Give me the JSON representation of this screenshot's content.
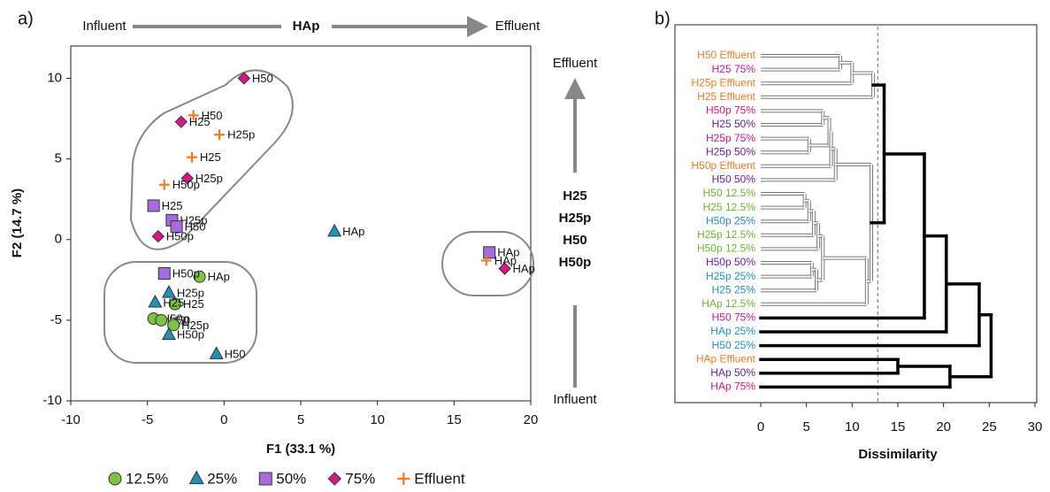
{
  "chart_data": [
    {
      "type": "scatter",
      "panel": "a)",
      "xlabel": "F1 (33.1 %)",
      "ylabel": "F2 (14.7 %)",
      "xlim": [
        -10,
        20
      ],
      "ylim": [
        -10,
        12
      ],
      "xticks": [
        -10,
        -5,
        0,
        5,
        10,
        15,
        20
      ],
      "yticks": [
        -10,
        -5,
        0,
        5,
        10
      ],
      "annotations": {
        "top": [
          "Influent",
          "HAp",
          "Effluent"
        ],
        "right": [
          "Effluent",
          "H25",
          "H25p",
          "H50",
          "H50p",
          "Influent"
        ]
      },
      "series": [
        {
          "name": "12.5%",
          "color": "#7dc242",
          "marker": "circle",
          "x": [
            -1.6,
            -3.2,
            -4.6,
            -4.1,
            -3.3
          ],
          "y": [
            -2.3,
            -4.0,
            -4.9,
            -5.0,
            -5.3
          ],
          "labels": [
            "HAp",
            "H25",
            "H50p",
            "H50",
            "H25p"
          ]
        },
        {
          "name": "25%",
          "color": "#2290b8",
          "marker": "triangle",
          "x": [
            7.2,
            -3.6,
            -4.5,
            -3.6,
            -0.5
          ],
          "y": [
            0.5,
            -3.3,
            -3.9,
            -5.9,
            -7.1
          ],
          "labels": [
            "HAp",
            "H25p",
            "H25",
            "H50p",
            "H50"
          ]
        },
        {
          "name": "50%",
          "color": "#a66bdf",
          "marker": "square",
          "x": [
            -3.9,
            -4.6,
            -3.4,
            -3.1,
            17.3
          ],
          "y": [
            -2.1,
            2.1,
            1.2,
            0.8,
            -0.8
          ],
          "labels": [
            "H50p",
            "H25",
            "H25p",
            "H50",
            "HAp"
          ]
        },
        {
          "name": "75%",
          "color": "#d6168a",
          "marker": "diamond",
          "x": [
            1.3,
            -2.8,
            -2.4,
            -4.3,
            18.3
          ],
          "y": [
            10.0,
            7.3,
            3.8,
            0.2,
            -1.8
          ],
          "labels": [
            "H50",
            "H25",
            "H25p",
            "H50p",
            "HAp"
          ]
        },
        {
          "name": "Effluent",
          "color": "#f47a20",
          "marker": "plus",
          "x": [
            -2.0,
            -0.3,
            -2.1,
            -3.9,
            17.1
          ],
          "y": [
            7.7,
            6.5,
            5.1,
            3.4,
            -1.3
          ],
          "labels": [
            "H50",
            "H25p",
            "H25",
            "H50p",
            "HAp"
          ]
        }
      ]
    },
    {
      "type": "dendrogram",
      "panel": "b)",
      "xlabel": "Dissimilarity",
      "xlim": [
        0,
        30
      ],
      "xticks": [
        0,
        5,
        10,
        15,
        20,
        25,
        30
      ],
      "cut": 12.8,
      "tree": {
        "height": 25.2,
        "children": [
          {
            "height": 23.9,
            "children": [
              {
                "height": 20.3,
                "children": [
                  {
                    "height": 17.9,
                    "children": [
                      {
                        "height": 13.5,
                        "children": [
                          {
                            "height": 12.3,
                            "children": [
                              {
                                "height": 10.0,
                                "children": [
                                  {
                                    "height": 8.7,
                                    "children": [
                                      {
                                        "label": "H50 Effluent",
                                        "color": "#f47a20"
                                      },
                                      {
                                        "label": "H25 75%",
                                        "color": "#d6168a"
                                      }
                                    ]
                                  },
                                  {
                                    "label": "H25p Effluent",
                                    "color": "#f47a20"
                                  }
                                ]
                              },
                              {
                                "label": "H25 Effluent",
                                "color": "#f47a20"
                              }
                            ]
                          },
                          {
                            "height": 12.1,
                            "children": [
                              {
                                "height": 8.2,
                                "children": [
                                  {
                                    "height": 7.7,
                                    "children": [
                                      {
                                        "height": 7.5,
                                        "children": [
                                          {
                                            "height": 6.8,
                                            "children": [
                                              {
                                                "label": "H50p 75%",
                                                "color": "#d6168a"
                                              },
                                              {
                                                "label": "H25 50%",
                                                "color": "#6a1fa3"
                                              }
                                            ]
                                          },
                                          {
                                            "height": 5.3,
                                            "children": [
                                              {
                                                "label": "H25p 75%",
                                                "color": "#d6168a"
                                              },
                                              {
                                                "label": "H25p 50%",
                                                "color": "#6a1fa3"
                                              }
                                            ]
                                          }
                                        ]
                                      },
                                      {
                                        "label": "H50p Effluent",
                                        "color": "#f47a20"
                                      }
                                    ]
                                  },
                                  {
                                    "label": "H50 50%",
                                    "color": "#6a1fa3"
                                  }
                                ]
                              },
                              {
                                "height": 11.6,
                                "children": [
                                  {
                                    "height": 6.8,
                                    "children": [
                                      {
                                        "height": 6.3,
                                        "children": [
                                          {
                                            "height": 5.8,
                                            "children": [
                                              {
                                                "height": 5.3,
                                                "children": [
                                                  {
                                                    "height": 4.8,
                                                    "children": [
                                                      {
                                                        "label": "H50 12.5%",
                                                        "color": "#6cb52e"
                                                      },
                                                      {
                                                        "label": "H25 12.5%",
                                                        "color": "#6cb52e"
                                                      }
                                                    ]
                                                  },
                                                  {
                                                    "label": "H50p 25%",
                                                    "color": "#2290b8"
                                                  }
                                                ]
                                              },
                                              {
                                                "label": "H25p 12.5%",
                                                "color": "#6cb52e"
                                              }
                                            ]
                                          },
                                          {
                                            "label": "H50p 12.5%",
                                            "color": "#6cb52e"
                                          }
                                        ]
                                      },
                                      {
                                        "height": 6.1,
                                        "children": [
                                          {
                                            "height": 5.6,
                                            "children": [
                                              {
                                                "label": "H50p 50%",
                                                "color": "#6a1fa3"
                                              },
                                              {
                                                "label": "H25p 25%",
                                                "color": "#2290b8"
                                              }
                                            ]
                                          },
                                          {
                                            "label": "H25 25%",
                                            "color": "#2290b8"
                                          }
                                        ]
                                      }
                                    ]
                                  },
                                  {
                                    "label": "HAp 12.5%",
                                    "color": "#6cb52e"
                                  }
                                ]
                              }
                            ]
                          }
                        ]
                      },
                      {
                        "label": "H50 75%",
                        "color": "#d6168a"
                      }
                    ]
                  },
                  {
                    "label": "HAp 25%",
                    "color": "#2290b8"
                  }
                ]
              },
              {
                "label": "H50 25%",
                "color": "#2290b8"
              }
            ]
          },
          {
            "height": 20.7,
            "children": [
              {
                "height": 15.0,
                "children": [
                  {
                    "label": "HAp Effluent",
                    "color": "#f47a20"
                  },
                  {
                    "label": "HAp 50%",
                    "color": "#6a1fa3"
                  }
                ]
              },
              {
                "label": "HAp 75%",
                "color": "#d6168a"
              }
            ]
          }
        ]
      }
    }
  ]
}
